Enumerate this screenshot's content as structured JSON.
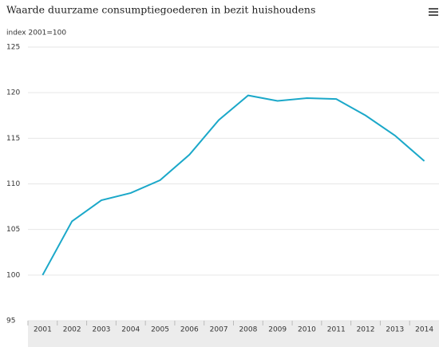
{
  "chart_data": {
    "type": "line",
    "title": "Waarde duurzame consumptiegoederen in bezit huishoudens",
    "y_axis_label": "index 2001=100",
    "categories": [
      "2001",
      "2002",
      "2003",
      "2004",
      "2005",
      "2006",
      "2007",
      "2008",
      "2009",
      "2010",
      "2011",
      "2012",
      "2013",
      "2014"
    ],
    "series": [
      {
        "name": "Waarde duurzame consumptiegoederen",
        "color": "#1ba8c9",
        "values": [
          100,
          105.9,
          108.2,
          109.0,
          110.4,
          113.2,
          117.0,
          119.7,
          119.1,
          119.4,
          119.3,
          117.5,
          115.3,
          112.5
        ]
      }
    ],
    "ylim": [
      95,
      125
    ],
    "yticks": [
      95,
      100,
      105,
      110,
      115,
      120,
      125
    ],
    "grid": true
  }
}
